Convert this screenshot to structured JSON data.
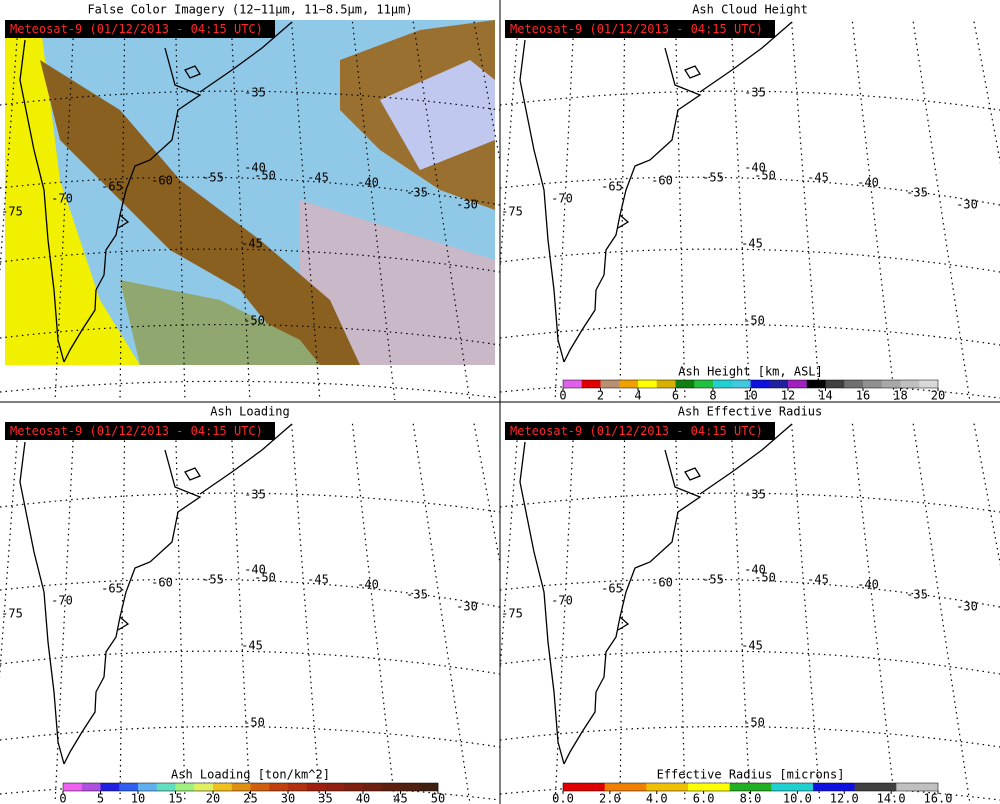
{
  "panels": [
    {
      "title": "False Color Imagery (12−11μm, 11−8.5μm, 11μm)",
      "stamp": "Meteosat-9  (01/12/2013 - 04:15 UTC)"
    },
    {
      "title": "Ash Cloud Height",
      "stamp": "Meteosat-9  (01/12/2013 - 04:15 UTC)",
      "colorbar": {
        "label": "Ash Height [km, ASL]",
        "lim": [
          0,
          20
        ],
        "ticks": [
          0,
          2,
          4,
          6,
          8,
          10,
          12,
          14,
          16,
          18,
          20
        ],
        "colors": [
          "#e060e8",
          "#e00000",
          "#b89070",
          "#f0a000",
          "#ffff00",
          "#d8b000",
          "#108010",
          "#20c040",
          "#20d0d0",
          "#40c8e0",
          "#1010e0",
          "#2020a0",
          "#a020c0",
          "#000000",
          "#404040",
          "#707070",
          "#909090",
          "#a8a8a8",
          "#c0c0c0",
          "#d8d8d8"
        ]
      }
    },
    {
      "title": "Ash Loading",
      "stamp": "Meteosat-9  (01/12/2013 - 04:15 UTC)",
      "colorbar": {
        "label": "Ash Loading [ton/km^2]",
        "lim": [
          0,
          50
        ],
        "ticks": [
          0,
          5,
          10,
          15,
          20,
          25,
          30,
          35,
          40,
          45,
          50
        ],
        "colors": [
          "#f060f0",
          "#b050e0",
          "#2020e0",
          "#3060f0",
          "#60b0f0",
          "#60e0c0",
          "#a0f080",
          "#e0f060",
          "#f0c020",
          "#e09010",
          "#d06010",
          "#c04010",
          "#b03010",
          "#a02010",
          "#902010",
          "#802010",
          "#702010",
          "#602010",
          "#502010",
          "#402010"
        ]
      }
    },
    {
      "title": "Ash Effective Radius",
      "stamp": "Meteosat-9  (01/12/2013 - 04:15 UTC)",
      "colorbar": {
        "label": "Effective Radius [microns]",
        "lim": [
          0,
          16
        ],
        "ticks": [
          {
            "value": 0,
            "label": "0.0"
          },
          {
            "value": 2,
            "label": "2.0"
          },
          {
            "value": 4,
            "label": "4.0"
          },
          {
            "value": 6,
            "label": "6.0"
          },
          {
            "value": 8,
            "label": "8.0"
          },
          {
            "value": 10,
            "label": "10.0"
          },
          {
            "value": 12,
            "label": "12.0"
          },
          {
            "value": 14,
            "label": "14.0"
          },
          {
            "value": 16,
            "label": "16.0"
          }
        ],
        "colors": [
          "#e00000",
          "#f08000",
          "#f0c000",
          "#ffff00",
          "#20b020",
          "#20d0d0",
          "#1010e0",
          "#404040",
          "#c0c0c0"
        ]
      }
    }
  ],
  "graticule_labels": [
    "-35",
    "-40",
    "-50",
    "-45",
    "-40",
    "-35",
    "-30",
    "-55",
    "-60",
    "-65",
    "-70",
    "-75",
    "-45",
    "-50"
  ]
}
